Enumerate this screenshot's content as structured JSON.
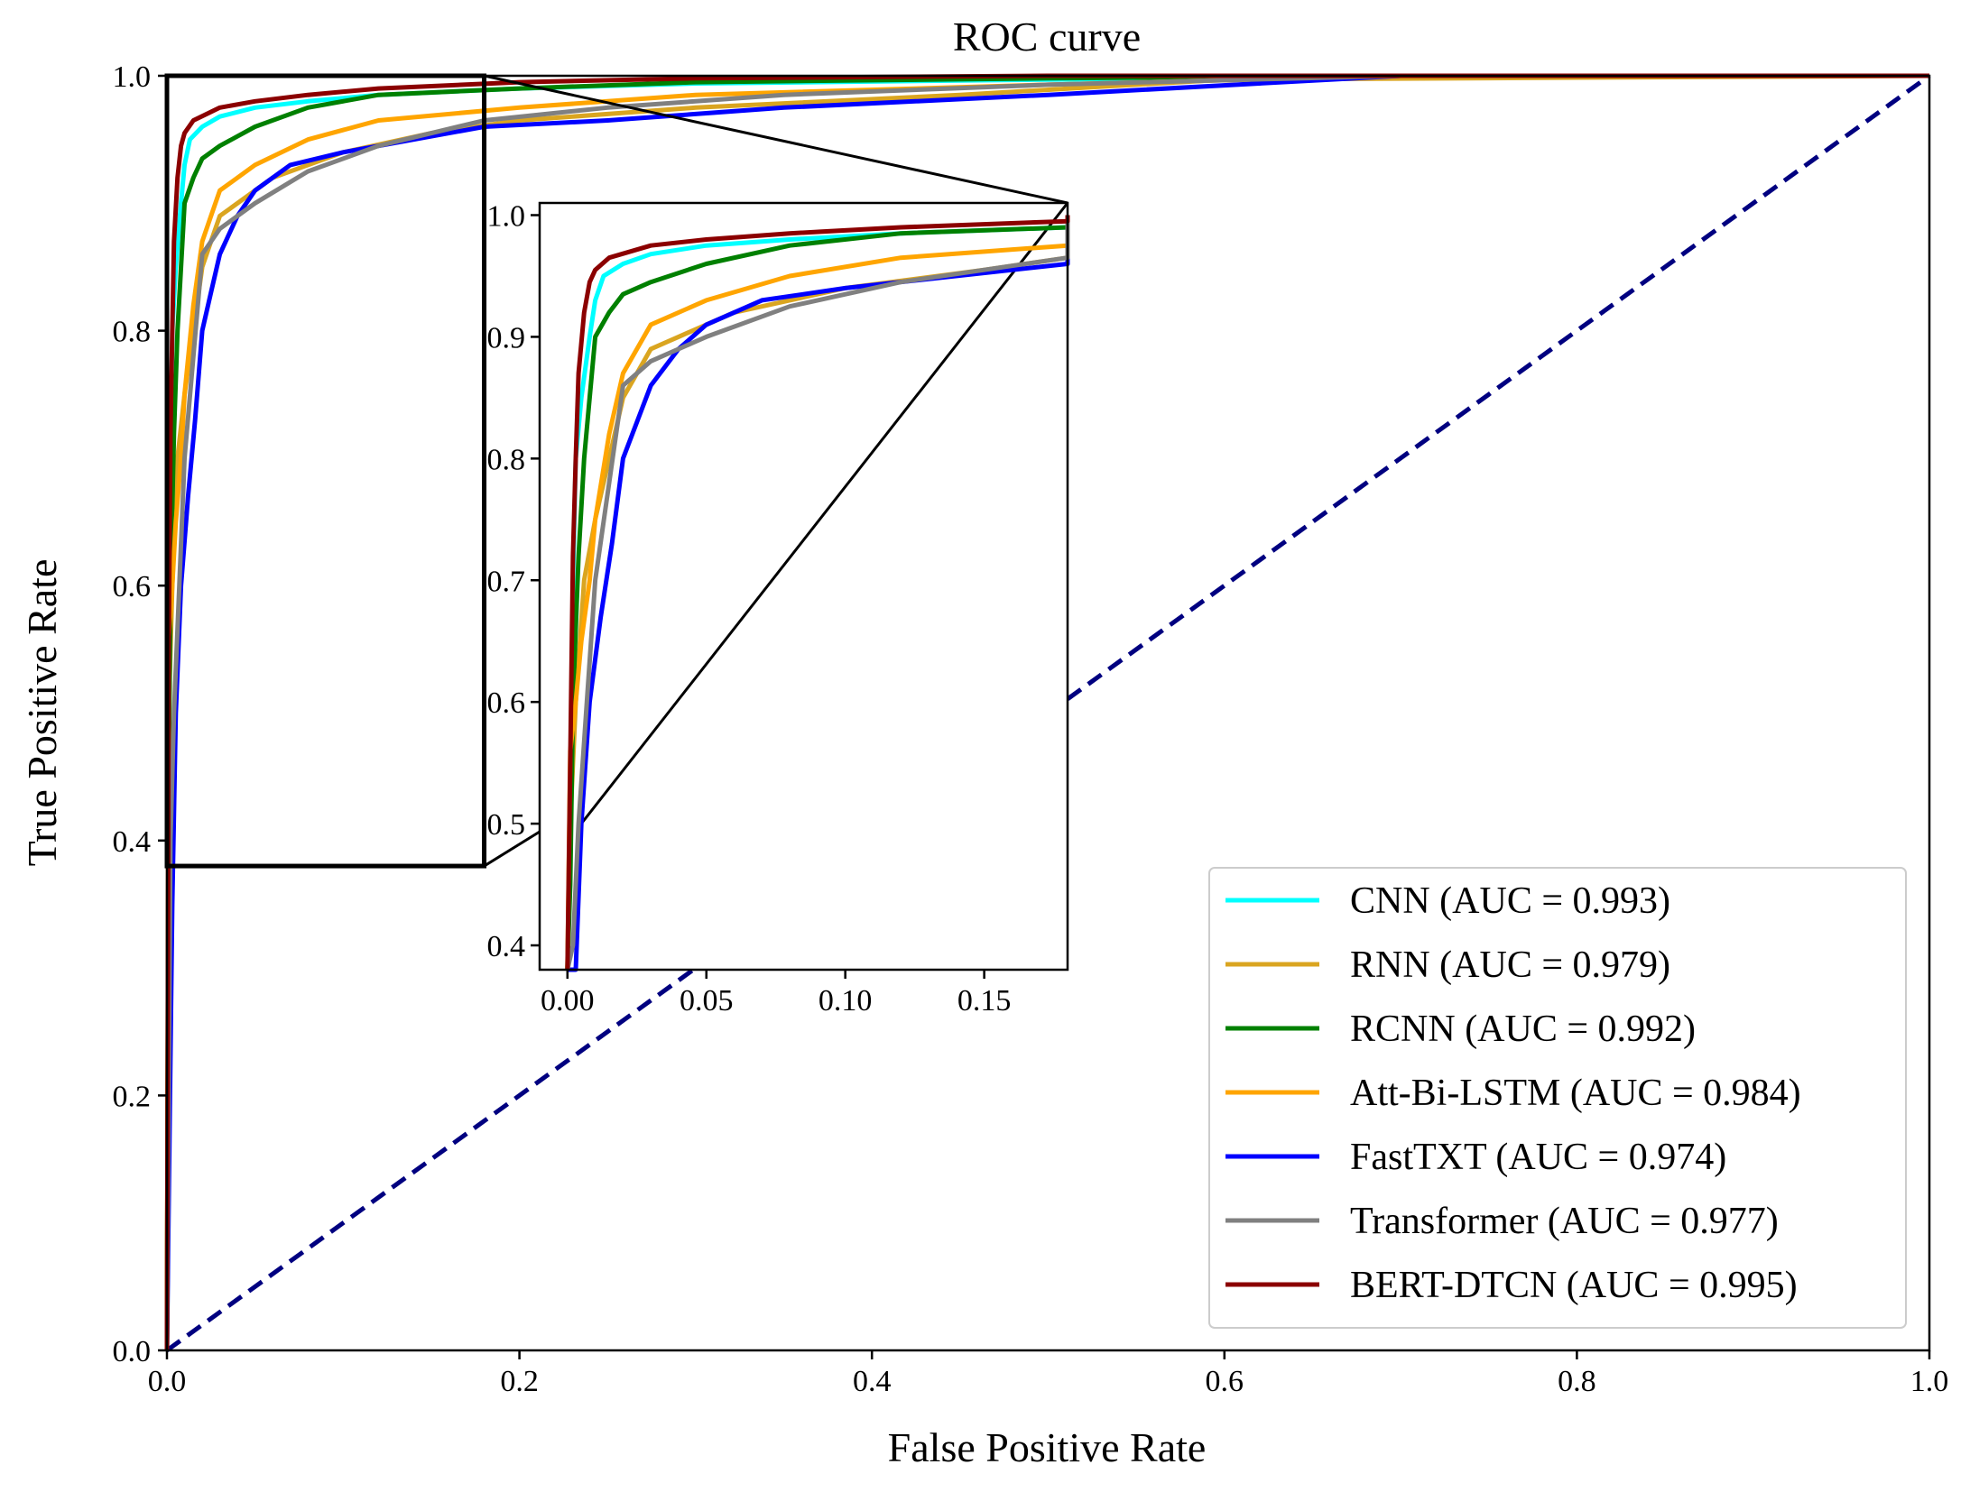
{
  "chart_data": {
    "type": "line",
    "title": "ROC curve",
    "xlabel": "False Positive Rate",
    "ylabel": "True Positive Rate",
    "xlim": [
      0.0,
      1.0
    ],
    "ylim": [
      0.0,
      1.0
    ],
    "xticks": [
      "0.0",
      "0.2",
      "0.4",
      "0.6",
      "0.8",
      "1.0"
    ],
    "yticks": [
      "0.0",
      "0.2",
      "0.4",
      "0.6",
      "0.8",
      "1.0"
    ],
    "grid": false,
    "legend_position": "lower-right",
    "chance_line": {
      "x": [
        0,
        1
      ],
      "y": [
        0,
        1
      ],
      "color": "#000080",
      "style": "dashed"
    },
    "series": [
      {
        "name": "CNN (AUC = 0.993)",
        "color": "#00ffff",
        "x": [
          0,
          0.001,
          0.002,
          0.003,
          0.005,
          0.008,
          0.01,
          0.013,
          0.02,
          0.03,
          0.05,
          0.08,
          0.12,
          0.2,
          0.3,
          0.5,
          0.7,
          1.0
        ],
        "y": [
          0,
          0.5,
          0.7,
          0.8,
          0.85,
          0.9,
          0.93,
          0.95,
          0.96,
          0.968,
          0.975,
          0.98,
          0.985,
          0.99,
          0.994,
          0.997,
          1.0,
          1.0
        ]
      },
      {
        "name": "RNN (AUC = 0.979)",
        "color": "#daa520",
        "x": [
          0,
          0.001,
          0.003,
          0.006,
          0.01,
          0.015,
          0.02,
          0.025,
          0.03,
          0.04,
          0.06,
          0.1,
          0.15,
          0.2,
          0.3,
          0.45,
          0.6,
          1.0
        ],
        "y": [
          0,
          0.5,
          0.6,
          0.7,
          0.75,
          0.8,
          0.85,
          0.87,
          0.89,
          0.9,
          0.92,
          0.94,
          0.955,
          0.965,
          0.975,
          0.985,
          0.997,
          1.0
        ]
      },
      {
        "name": "RCNN (AUC = 0.992)",
        "color": "#008000",
        "x": [
          0,
          0.001,
          0.002,
          0.004,
          0.006,
          0.008,
          0.01,
          0.015,
          0.02,
          0.03,
          0.05,
          0.08,
          0.12,
          0.2,
          0.3,
          0.5,
          0.7,
          1.0
        ],
        "y": [
          0,
          0.45,
          0.6,
          0.72,
          0.8,
          0.85,
          0.9,
          0.92,
          0.935,
          0.945,
          0.96,
          0.975,
          0.985,
          0.99,
          0.995,
          0.998,
          1.0,
          1.0
        ]
      },
      {
        "name": "Att-Bi-LSTM (AUC = 0.984)",
        "color": "#ffa500",
        "x": [
          0,
          0.001,
          0.003,
          0.005,
          0.008,
          0.01,
          0.015,
          0.02,
          0.025,
          0.03,
          0.05,
          0.08,
          0.12,
          0.2,
          0.3,
          0.5,
          0.7,
          1.0
        ],
        "y": [
          0,
          0.56,
          0.6,
          0.65,
          0.7,
          0.75,
          0.82,
          0.87,
          0.89,
          0.91,
          0.93,
          0.95,
          0.965,
          0.975,
          0.985,
          0.993,
          1.0,
          1.0
        ]
      },
      {
        "name": "FastTXT (AUC = 0.974)",
        "color": "#0000ff",
        "x": [
          0,
          0.003,
          0.005,
          0.008,
          0.012,
          0.016,
          0.02,
          0.025,
          0.03,
          0.04,
          0.05,
          0.07,
          0.1,
          0.18,
          0.25,
          0.35,
          0.5,
          0.7,
          1.0
        ],
        "y": [
          0,
          0.35,
          0.5,
          0.6,
          0.67,
          0.73,
          0.8,
          0.83,
          0.86,
          0.89,
          0.91,
          0.93,
          0.94,
          0.96,
          0.965,
          0.975,
          0.985,
          1.0,
          1.0
        ]
      },
      {
        "name": "Transformer (AUC = 0.977)",
        "color": "#808080",
        "x": [
          0,
          0.002,
          0.004,
          0.007,
          0.01,
          0.015,
          0.02,
          0.03,
          0.05,
          0.08,
          0.12,
          0.18,
          0.25,
          0.35,
          0.5,
          0.7,
          1.0
        ],
        "y": [
          0,
          0.4,
          0.5,
          0.6,
          0.7,
          0.78,
          0.86,
          0.88,
          0.9,
          0.925,
          0.945,
          0.965,
          0.975,
          0.985,
          0.993,
          1.0,
          1.0
        ]
      },
      {
        "name": "BERT-DTCN (AUC = 0.995)",
        "color": "#8b0000",
        "x": [
          0,
          0.001,
          0.002,
          0.003,
          0.004,
          0.006,
          0.008,
          0.01,
          0.015,
          0.03,
          0.05,
          0.08,
          0.12,
          0.2,
          0.3,
          0.5,
          1.0
        ],
        "y": [
          0,
          0.55,
          0.72,
          0.8,
          0.87,
          0.92,
          0.945,
          0.955,
          0.965,
          0.975,
          0.98,
          0.985,
          0.99,
          0.995,
          0.998,
          1.0,
          1.0
        ]
      }
    ],
    "inset": {
      "xlim": [
        -0.01,
        0.18
      ],
      "ylim": [
        0.38,
        1.01
      ],
      "xticks": [
        "0.00",
        "0.05",
        "0.10",
        "0.15"
      ],
      "yticks": [
        "0.4",
        "0.5",
        "0.6",
        "0.7",
        "0.8",
        "0.9",
        "1.0"
      ],
      "zoom_region": {
        "x": [
          0.0,
          0.18
        ],
        "y": [
          0.38,
          1.0
        ]
      }
    }
  }
}
